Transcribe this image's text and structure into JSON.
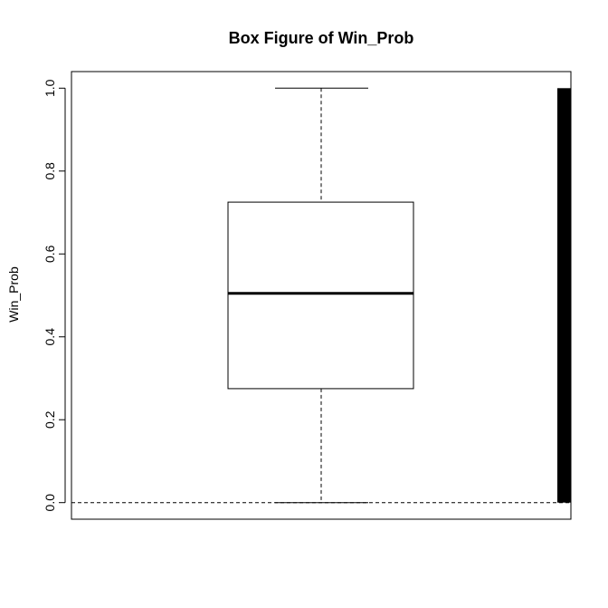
{
  "chart_data": {
    "type": "box",
    "title": "Box Figure of Win_Prob",
    "xlabel": "",
    "ylabel": "Win_Prob",
    "ylim": [
      -0.04,
      1.04
    ],
    "yticks": [
      0.0,
      0.2,
      0.4,
      0.6,
      0.8,
      1.0
    ],
    "ytick_labels": [
      "0.0",
      "0.2",
      "0.4",
      "0.6",
      "0.8",
      "1.0"
    ],
    "box": {
      "min": 0.0,
      "q1": 0.275,
      "median": 0.505,
      "q3": 0.725,
      "max": 1.0
    },
    "reference_line": {
      "y": 0.0,
      "style": "dashed"
    },
    "rug_bar": {
      "y_from": 0.0,
      "y_to": 1.0
    },
    "grid": false,
    "colors": {
      "stroke": "#000000",
      "background": "#ffffff"
    }
  }
}
